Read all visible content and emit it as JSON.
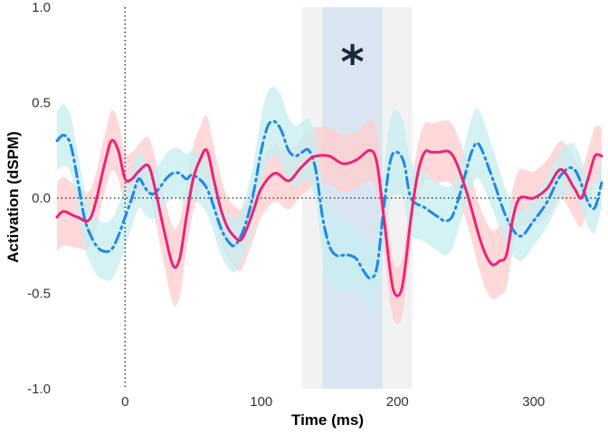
{
  "chart_data": {
    "type": "line",
    "title": "",
    "xlabel": "Time (ms)",
    "ylabel": "Activation (dSPM)",
    "xlim": [
      -50,
      350
    ],
    "ylim": [
      -1.0,
      1.0
    ],
    "xticks": [
      0,
      100,
      200,
      300
    ],
    "yticks": [
      1.0,
      0.5,
      0.0,
      -0.5,
      -1.0
    ],
    "ytick_labels": [
      "1.0",
      "0.5",
      "0.0",
      "-0.5",
      "-1.0"
    ],
    "grid": false,
    "legend": "none",
    "reference_lines": {
      "x_zero": "dotted",
      "y_zero": "dotted"
    },
    "shaded_windows": [
      {
        "x": [
          130,
          211
        ],
        "color": "#f2f2f2"
      },
      {
        "x": [
          145,
          189
        ],
        "color": "#d9e6f2"
      }
    ],
    "annotation": {
      "text": "*",
      "x": 167,
      "y": 0.75
    },
    "series": [
      {
        "style": "solid",
        "color": "#ee2277",
        "band_color": "#ffcccc",
        "x": [
          -50,
          -45,
          -35,
          -25,
          -15,
          -10,
          -5,
          0,
          5,
          10,
          17,
          22,
          28,
          35,
          40,
          45,
          50,
          55,
          60,
          65,
          70,
          75,
          80,
          85,
          90,
          95,
          100,
          110,
          120,
          128,
          135,
          140,
          150,
          160,
          170,
          180,
          185,
          190,
          195,
          198,
          202,
          205,
          210,
          215,
          220,
          225,
          230,
          240,
          250,
          260,
          265,
          270,
          275,
          280,
          285,
          290,
          300,
          310,
          320,
          330,
          335,
          340,
          345,
          350
        ],
        "y": [
          -0.1,
          -0.07,
          -0.1,
          -0.1,
          0.18,
          0.3,
          0.25,
          0.1,
          0.1,
          0.14,
          0.17,
          0.05,
          -0.15,
          -0.35,
          -0.32,
          -0.1,
          0.1,
          0.2,
          0.25,
          0.1,
          -0.05,
          -0.15,
          -0.2,
          -0.22,
          -0.15,
          -0.05,
          0.05,
          0.13,
          0.09,
          0.15,
          0.2,
          0.22,
          0.22,
          0.18,
          0.2,
          0.25,
          0.18,
          -0.1,
          -0.4,
          -0.5,
          -0.5,
          -0.4,
          -0.1,
          0.13,
          0.24,
          0.24,
          0.24,
          0.23,
          0.05,
          -0.2,
          -0.3,
          -0.35,
          -0.33,
          -0.3,
          -0.1,
          0.0,
          0.0,
          0.05,
          0.15,
          0.05,
          0.0,
          0.1,
          0.22,
          0.22
        ],
        "err": [
          0.18,
          0.18,
          0.16,
          0.15,
          0.15,
          0.16,
          0.15,
          0.14,
          0.14,
          0.14,
          0.15,
          0.16,
          0.18,
          0.2,
          0.2,
          0.18,
          0.17,
          0.17,
          0.18,
          0.18,
          0.17,
          0.16,
          0.16,
          0.16,
          0.15,
          0.15,
          0.15,
          0.15,
          0.15,
          0.15,
          0.15,
          0.15,
          0.15,
          0.15,
          0.15,
          0.16,
          0.16,
          0.17,
          0.16,
          0.15,
          0.15,
          0.15,
          0.15,
          0.15,
          0.15,
          0.15,
          0.16,
          0.16,
          0.16,
          0.17,
          0.18,
          0.18,
          0.18,
          0.17,
          0.16,
          0.15,
          0.14,
          0.15,
          0.15,
          0.16,
          0.15,
          0.15,
          0.15,
          0.15
        ]
      },
      {
        "style": "dashdot",
        "color": "#1e88e5",
        "band_color": "#c6eef0",
        "x": [
          -50,
          -45,
          -40,
          -35,
          -30,
          -25,
          -20,
          -15,
          -10,
          -5,
          0,
          5,
          10,
          15,
          20,
          25,
          30,
          35,
          40,
          45,
          50,
          60,
          70,
          75,
          80,
          85,
          90,
          95,
          100,
          105,
          110,
          115,
          120,
          125,
          130,
          135,
          140,
          145,
          150,
          155,
          160,
          165,
          170,
          175,
          180,
          185,
          190,
          195,
          200,
          205,
          210,
          220,
          230,
          235,
          240,
          245,
          250,
          255,
          260,
          270,
          280,
          290,
          300,
          310,
          320,
          330,
          340,
          345,
          350
        ],
        "y": [
          0.3,
          0.33,
          0.28,
          0.1,
          -0.1,
          -0.2,
          -0.26,
          -0.28,
          -0.27,
          -0.2,
          -0.1,
          0.0,
          0.1,
          0.05,
          0.02,
          0.05,
          0.1,
          0.13,
          0.13,
          0.1,
          0.12,
          0.05,
          -0.15,
          -0.22,
          -0.25,
          -0.2,
          -0.1,
          0.05,
          0.25,
          0.38,
          0.4,
          0.35,
          0.25,
          0.22,
          0.24,
          0.25,
          0.15,
          -0.1,
          -0.25,
          -0.3,
          -0.3,
          -0.3,
          -0.32,
          -0.38,
          -0.42,
          -0.36,
          -0.05,
          0.2,
          0.24,
          0.18,
          0.0,
          -0.05,
          -0.1,
          -0.12,
          -0.1,
          0.0,
          0.13,
          0.25,
          0.28,
          0.1,
          -0.1,
          -0.2,
          -0.12,
          -0.02,
          0.12,
          0.15,
          -0.02,
          -0.05,
          0.08
        ],
        "err": [
          0.16,
          0.16,
          0.15,
          0.15,
          0.15,
          0.15,
          0.15,
          0.15,
          0.16,
          0.16,
          0.16,
          0.15,
          0.15,
          0.14,
          0.13,
          0.13,
          0.13,
          0.13,
          0.13,
          0.13,
          0.13,
          0.13,
          0.14,
          0.14,
          0.14,
          0.14,
          0.15,
          0.16,
          0.18,
          0.18,
          0.18,
          0.18,
          0.17,
          0.16,
          0.16,
          0.16,
          0.17,
          0.19,
          0.2,
          0.2,
          0.18,
          0.17,
          0.16,
          0.16,
          0.17,
          0.17,
          0.2,
          0.22,
          0.22,
          0.2,
          0.19,
          0.18,
          0.18,
          0.18,
          0.17,
          0.16,
          0.17,
          0.18,
          0.18,
          0.16,
          0.14,
          0.13,
          0.13,
          0.13,
          0.13,
          0.13,
          0.13,
          0.13,
          0.13
        ]
      }
    ]
  }
}
